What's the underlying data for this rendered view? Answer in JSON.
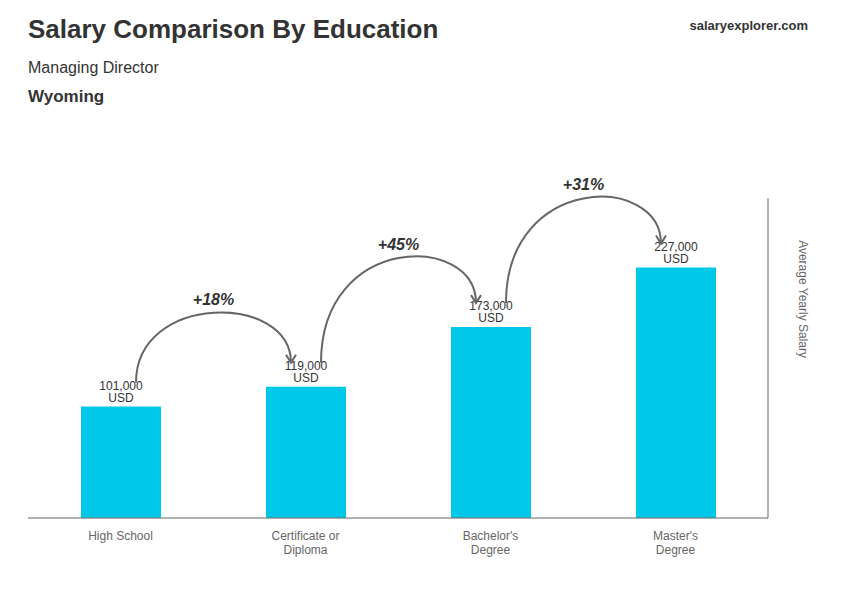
{
  "chart_data": {
    "type": "bar",
    "title": "Salary Comparison By Education",
    "subtitle": "Managing Director",
    "ylabel": "Average Yearly Salary",
    "categories": [
      "High School",
      "Certificate or\nDiploma",
      "Bachelor's\nDegree",
      "Master's\nDegree"
    ],
    "values": [
      101000,
      119000,
      173000,
      227000
    ],
    "value_labels": [
      "101,000 USD",
      "119,000 USD",
      "173,000 USD",
      "227,000 USD"
    ],
    "data_labels": true,
    "color": "#00c8e8",
    "ylim": [
      0,
      290000
    ],
    "tick_labels": "x",
    "grid": false,
    "annotations": [
      {
        "text": "Wyoming"
      },
      {
        "text": "salaryexplorer.com"
      },
      {
        "text": "+18%",
        "from": "High School",
        "to": "Certificate or\nDiploma"
      },
      {
        "text": "+45%",
        "from": "Certificate or\nDiploma",
        "to": "Bachelor's\nDegree"
      },
      {
        "text": "+31%",
        "from": "Bachelor's\nDegree",
        "to": "Master's\nDegree"
      }
    ]
  }
}
